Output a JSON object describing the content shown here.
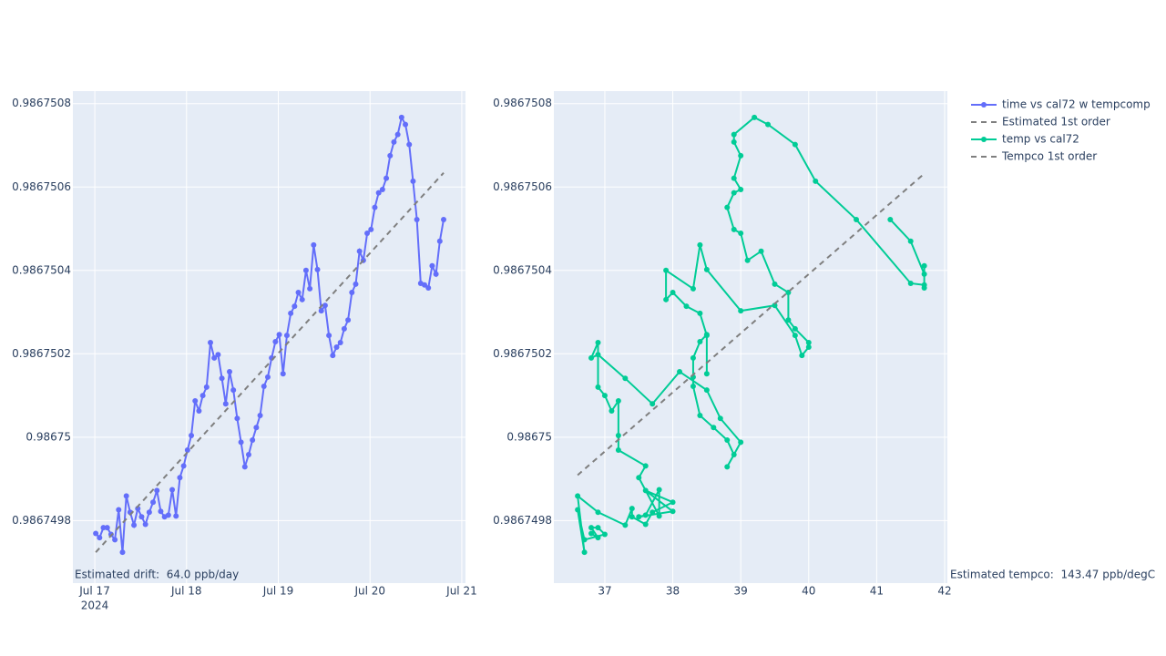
{
  "chart_data": [
    {
      "type": "line",
      "x_sublabel": "2024",
      "annotation": "Estimated drift:  64.0 ppb/day",
      "xlim": [
        "2024-07-16T18:16",
        "2024-07-21T00:58"
      ],
      "xticks": [
        {
          "value": "2024-07-17T00:00",
          "label": "Jul 17"
        },
        {
          "value": "2024-07-18T00:00",
          "label": "Jul 18"
        },
        {
          "value": "2024-07-19T00:00",
          "label": "Jul 19"
        },
        {
          "value": "2024-07-20T00:00",
          "label": "Jul 20"
        },
        {
          "value": "2024-07-21T00:00",
          "label": "Jul 21"
        }
      ],
      "ylim": [
        0.98674965,
        0.98675083
      ],
      "yticks": [
        0.9867498,
        0.98675,
        0.9867502,
        0.9867504,
        0.9867506,
        0.9867508
      ],
      "grid": true,
      "series": [
        {
          "name": "time vs cal72 w tempcomp",
          "color": "#636efa",
          "markers": true,
          "dash": false,
          "x": [
            "2024-07-17T00:15",
            "2024-07-17T01:15",
            "2024-07-17T02:15",
            "2024-07-17T03:15",
            "2024-07-17T04:15",
            "2024-07-17T05:15",
            "2024-07-17T06:15",
            "2024-07-17T07:15",
            "2024-07-17T08:15",
            "2024-07-17T09:15",
            "2024-07-17T10:15",
            "2024-07-17T11:15",
            "2024-07-17T12:15",
            "2024-07-17T13:15",
            "2024-07-17T14:15",
            "2024-07-17T15:15",
            "2024-07-17T16:15",
            "2024-07-17T17:15",
            "2024-07-17T18:15",
            "2024-07-17T19:15",
            "2024-07-17T20:15",
            "2024-07-17T21:15",
            "2024-07-17T22:15",
            "2024-07-17T23:15",
            "2024-07-18T00:15",
            "2024-07-18T01:15",
            "2024-07-18T02:15",
            "2024-07-18T03:15",
            "2024-07-18T04:15",
            "2024-07-18T05:15",
            "2024-07-18T06:15",
            "2024-07-18T07:15",
            "2024-07-18T08:15",
            "2024-07-18T09:15",
            "2024-07-18T10:15",
            "2024-07-18T11:15",
            "2024-07-18T12:15",
            "2024-07-18T13:15",
            "2024-07-18T14:15",
            "2024-07-18T15:15",
            "2024-07-18T16:15",
            "2024-07-18T17:15",
            "2024-07-18T18:15",
            "2024-07-18T19:15",
            "2024-07-18T20:15",
            "2024-07-18T21:15",
            "2024-07-18T22:15",
            "2024-07-18T23:15",
            "2024-07-19T00:15",
            "2024-07-19T01:15",
            "2024-07-19T02:15",
            "2024-07-19T03:15",
            "2024-07-19T04:15",
            "2024-07-19T05:15",
            "2024-07-19T06:15",
            "2024-07-19T07:15",
            "2024-07-19T08:15",
            "2024-07-19T09:15",
            "2024-07-19T10:15",
            "2024-07-19T11:15",
            "2024-07-19T12:15",
            "2024-07-19T13:15",
            "2024-07-19T14:15",
            "2024-07-19T15:15",
            "2024-07-19T16:15",
            "2024-07-19T17:15",
            "2024-07-19T18:15",
            "2024-07-19T19:15",
            "2024-07-19T20:15",
            "2024-07-19T21:15",
            "2024-07-19T22:15",
            "2024-07-19T23:15",
            "2024-07-20T00:15",
            "2024-07-20T01:15",
            "2024-07-20T02:15",
            "2024-07-20T03:15",
            "2024-07-20T04:15",
            "2024-07-20T05:15",
            "2024-07-20T06:15",
            "2024-07-20T07:15",
            "2024-07-20T08:15",
            "2024-07-20T09:15",
            "2024-07-20T10:15",
            "2024-07-20T11:15",
            "2024-07-20T12:15",
            "2024-07-20T13:15",
            "2024-07-20T14:15",
            "2024-07-20T15:15",
            "2024-07-20T16:15",
            "2024-07-20T17:15",
            "2024-07-20T18:15",
            "2024-07-20T19:15"
          ],
          "values": [
            0.986749769,
            0.986749759,
            0.986749783,
            0.986749783,
            0.986749767,
            0.986749754,
            0.986749826,
            0.986749724,
            0.986749859,
            0.98674982,
            0.986749789,
            0.986749829,
            0.986749809,
            0.986749791,
            0.98674982,
            0.986749844,
            0.986749872,
            0.986749822,
            0.986749809,
            0.986749813,
            0.986749874,
            0.986749811,
            0.986749903,
            0.986749931,
            0.986749969,
            0.986750004,
            0.986750087,
            0.986750063,
            0.9867501,
            0.98675012,
            0.986750227,
            0.98675019,
            0.986750198,
            0.986750141,
            0.98675008,
            0.986750157,
            0.986750113,
            0.986750045,
            0.986749988,
            0.986749929,
            0.986749958,
            0.986749993,
            0.986750023,
            0.986750052,
            0.986750122,
            0.986750144,
            0.98675019,
            0.986750229,
            0.986750246,
            0.986750152,
            0.986750244,
            0.986750297,
            0.986750314,
            0.986750347,
            0.98675033,
            0.9867504,
            0.986750356,
            0.986750461,
            0.986750402,
            0.986750303,
            0.986750316,
            0.986750244,
            0.986750196,
            0.986750216,
            0.986750227,
            0.98675026,
            0.986750281,
            0.986750347,
            0.986750367,
            0.986750446,
            0.986750424,
            0.986750489,
            0.986750498,
            0.986750551,
            0.986750586,
            0.986750594,
            0.986750621,
            0.986750675,
            0.986750708,
            0.986750726,
            0.986750767,
            0.98675075,
            0.986750702,
            0.986750614,
            0.986750522,
            0.986750369,
            0.986750365,
            0.986750358,
            0.986750411,
            0.986750391,
            0.98675047,
            0.986750522
          ]
        },
        {
          "name": "Estimated 1st order",
          "color": "#7f7f7f",
          "markers": false,
          "dash": true,
          "x": [
            "2024-07-17T00:15",
            "2024-07-20T19:15"
          ],
          "values": [
            0.986749724,
            0.986750634
          ]
        }
      ]
    },
    {
      "type": "line",
      "annotation": "Estimated tempco:  143.47 ppb/degC",
      "xlim": [
        36.25,
        42.04
      ],
      "xticks": [
        37,
        38,
        39,
        40,
        41,
        42
      ],
      "ylim": [
        0.98674965,
        0.98675083
      ],
      "yticks": [
        0.9867498,
        0.98675,
        0.9867502,
        0.9867504,
        0.9867506,
        0.9867508
      ],
      "grid": true,
      "series": [
        {
          "name": "temp vs cal72",
          "color": "#00cc96",
          "markers": true,
          "dash": false,
          "x": [
            36.8,
            36.9,
            36.8,
            36.9,
            37.0,
            36.7,
            36.6,
            36.7,
            36.6,
            36.9,
            37.3,
            37.4,
            37.4,
            37.6,
            37.7,
            38.0,
            37.6,
            38.0,
            37.5,
            37.6,
            37.8,
            37.8,
            37.5,
            37.6,
            37.2,
            37.2,
            37.2,
            37.1,
            37.0,
            36.9,
            36.9,
            36.8,
            36.9,
            37.3,
            37.7,
            38.1,
            38.5,
            38.7,
            39.0,
            38.8,
            38.9,
            38.8,
            38.6,
            38.4,
            38.3,
            38.3,
            38.3,
            38.4,
            38.5,
            38.5,
            38.5,
            38.4,
            38.2,
            38.0,
            37.9,
            37.9,
            38.3,
            38.4,
            38.5,
            39.0,
            39.5,
            39.8,
            39.9,
            40.0,
            40.0,
            39.8,
            39.7,
            39.7,
            39.5,
            39.3,
            39.1,
            39.0,
            38.9,
            38.8,
            38.9,
            39.0,
            38.9,
            39.0,
            38.9,
            38.9,
            39.2,
            39.4,
            39.8,
            40.1,
            40.7,
            41.5,
            41.7,
            41.7,
            41.7,
            41.7,
            41.5,
            41.2
          ],
          "values": [
            0.986749769,
            0.986749759,
            0.986749783,
            0.986749783,
            0.986749767,
            0.986749754,
            0.986749826,
            0.986749724,
            0.986749859,
            0.98674982,
            0.986749789,
            0.986749829,
            0.986749809,
            0.986749791,
            0.98674982,
            0.986749844,
            0.986749872,
            0.986749822,
            0.986749809,
            0.986749813,
            0.986749874,
            0.986749811,
            0.986749903,
            0.986749931,
            0.986749969,
            0.986750004,
            0.986750087,
            0.986750063,
            0.9867501,
            0.98675012,
            0.986750227,
            0.98675019,
            0.986750198,
            0.986750141,
            0.98675008,
            0.986750157,
            0.986750113,
            0.986750045,
            0.986749988,
            0.986749929,
            0.986749958,
            0.986749993,
            0.986750023,
            0.986750052,
            0.986750122,
            0.986750144,
            0.98675019,
            0.986750229,
            0.986750246,
            0.986750152,
            0.986750244,
            0.986750297,
            0.986750314,
            0.986750347,
            0.98675033,
            0.9867504,
            0.986750356,
            0.986750461,
            0.986750402,
            0.986750303,
            0.986750316,
            0.986750244,
            0.986750196,
            0.986750216,
            0.986750227,
            0.98675026,
            0.986750281,
            0.986750347,
            0.986750367,
            0.986750446,
            0.986750424,
            0.986750489,
            0.986750498,
            0.986750551,
            0.986750586,
            0.986750594,
            0.986750621,
            0.986750675,
            0.986750708,
            0.986750726,
            0.986750767,
            0.98675075,
            0.986750702,
            0.986750614,
            0.986750522,
            0.986750369,
            0.986750365,
            0.986750358,
            0.986750411,
            0.986750391,
            0.98675047,
            0.986750522
          ]
        },
        {
          "name": "Tempco 1st order",
          "color": "#7f7f7f",
          "markers": false,
          "dash": true,
          "x": [
            36.6,
            41.7
          ],
          "values": [
            0.986749909,
            0.986750632
          ]
        }
      ]
    }
  ]
}
